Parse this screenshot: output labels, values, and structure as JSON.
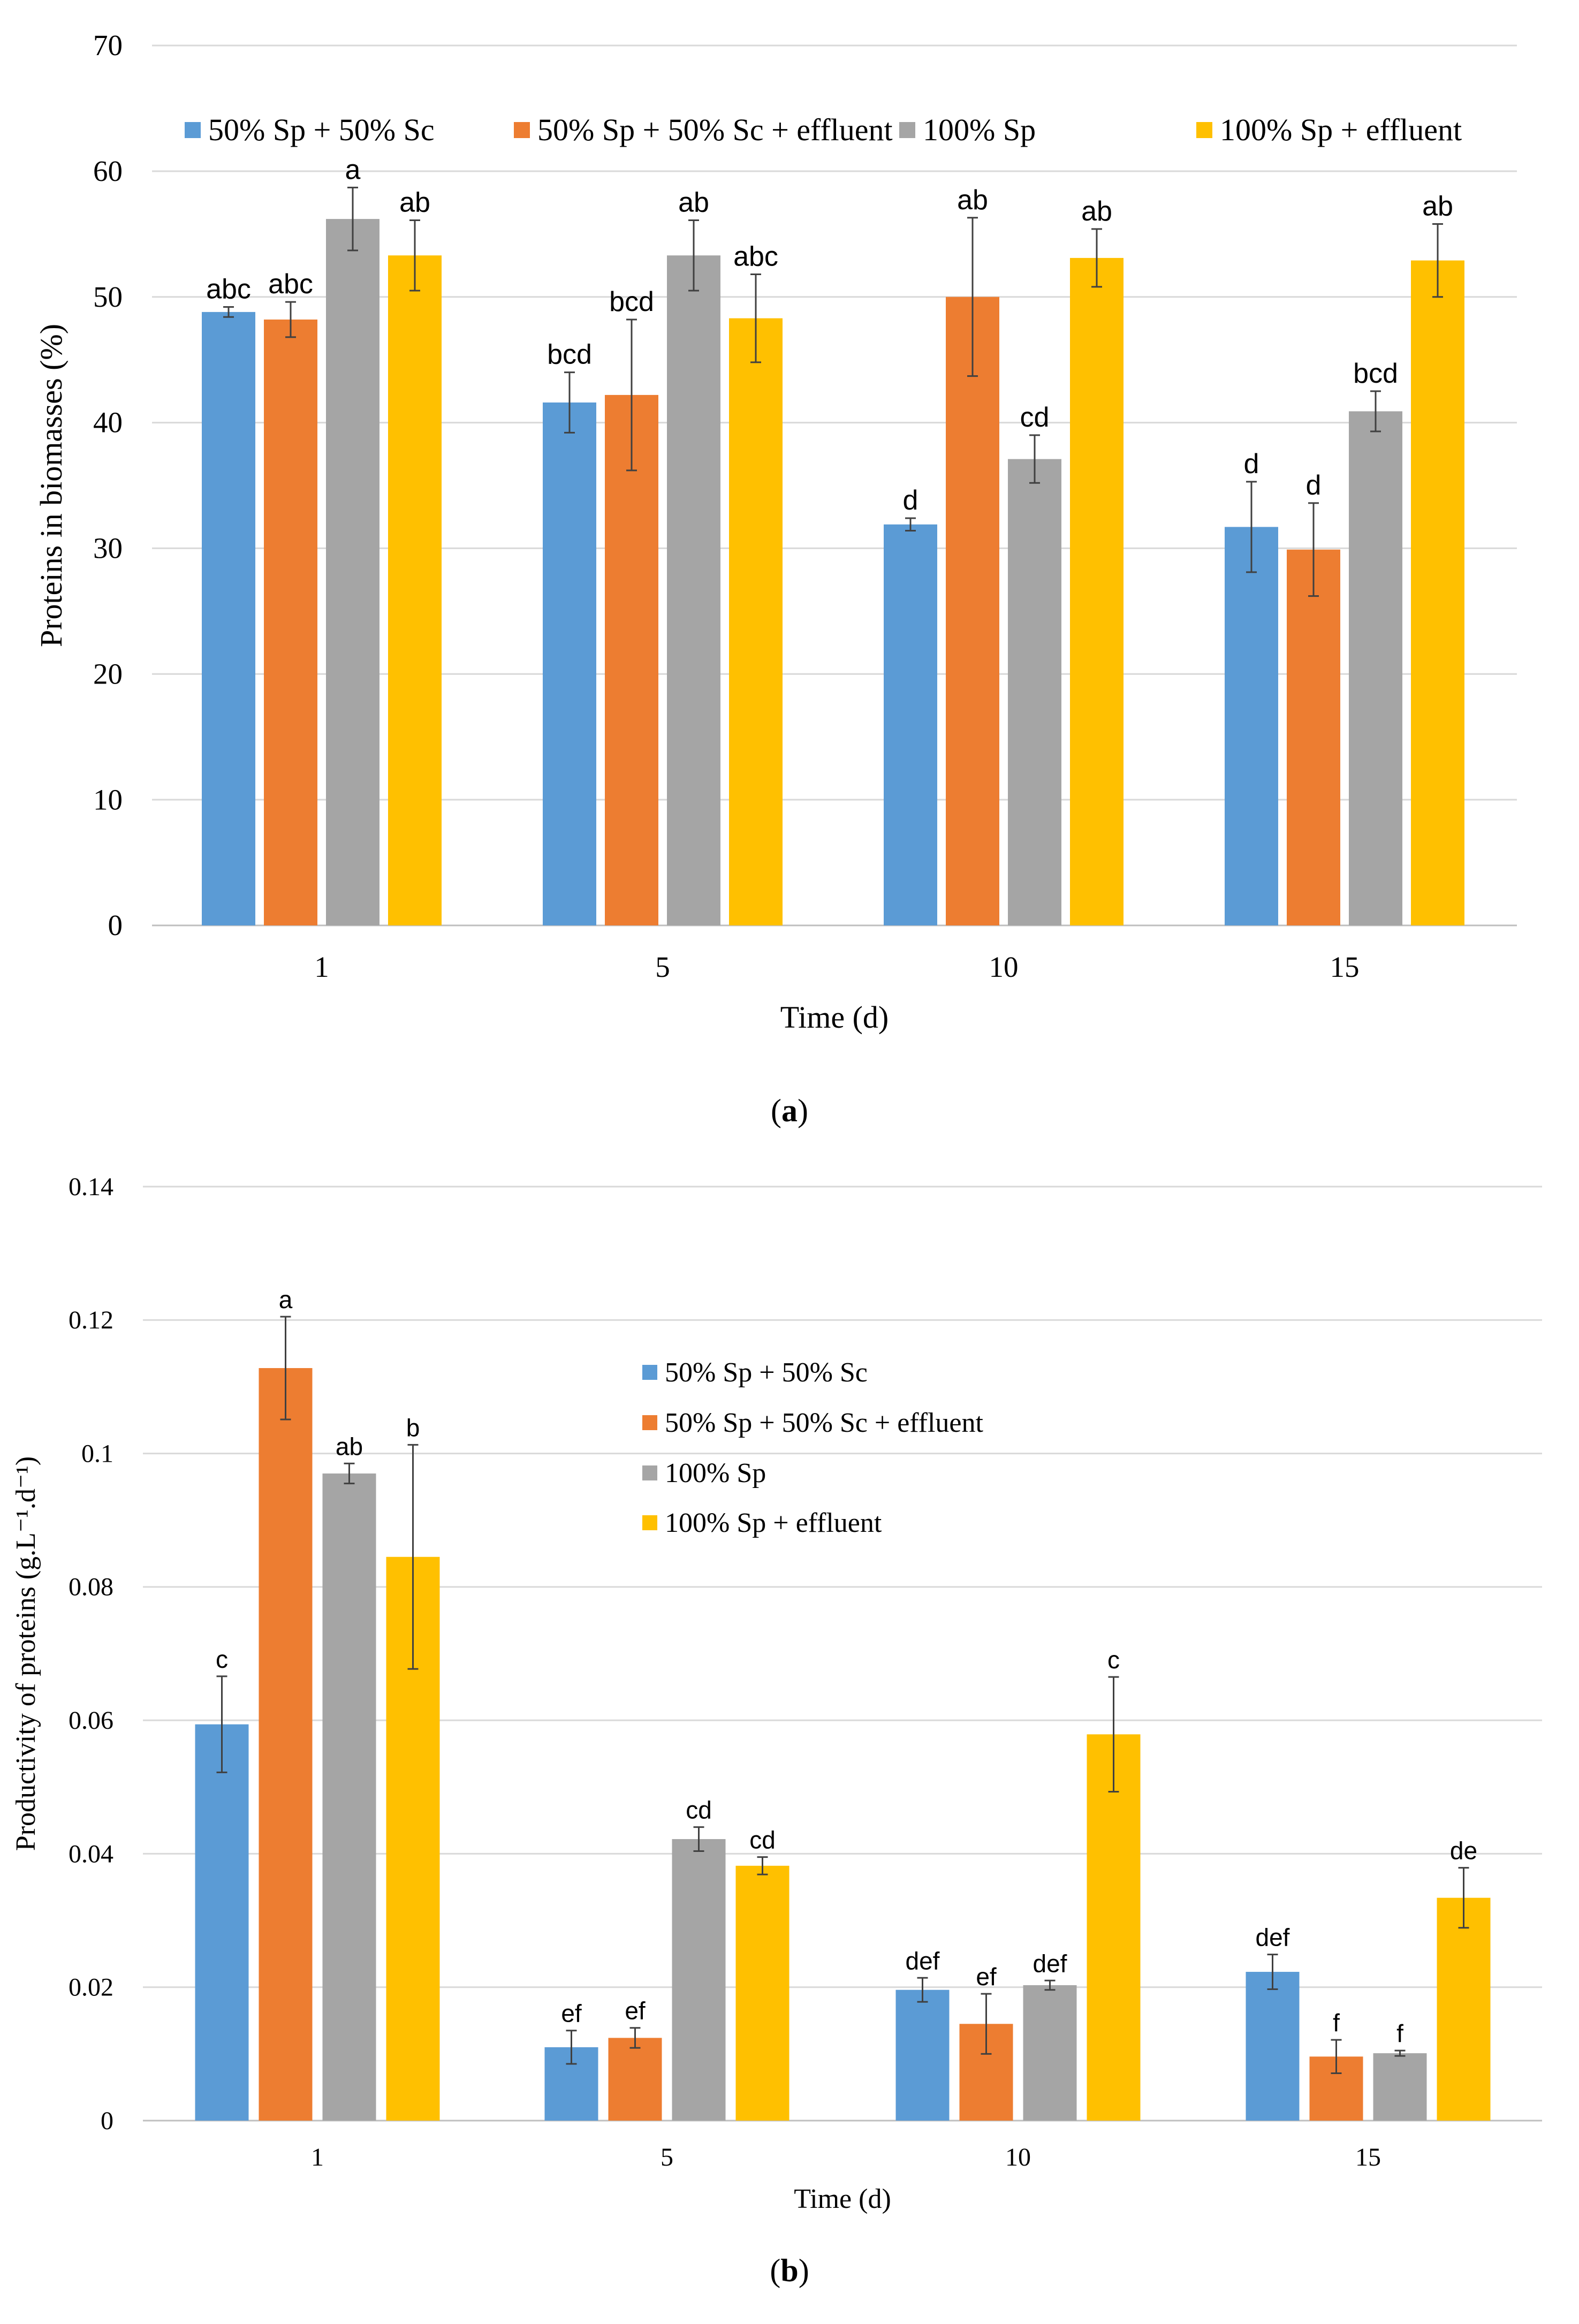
{
  "series_names": [
    "50% Sp + 50% Sc",
    "50% Sp + 50% Sc + effluent",
    "100% Sp",
    "100% Sp + effluent"
  ],
  "colors": [
    "#5B9BD5",
    "#ED7D31",
    "#A5A5A5",
    "#FFC000"
  ],
  "chart_data": [
    {
      "type": "bar",
      "caption": "a",
      "xlabel": "Time (d)",
      "ylabel": "Proteins in biomasses  (%)",
      "ylim": [
        0,
        70
      ],
      "yticks": [
        "0",
        "10",
        "20",
        "30",
        "40",
        "50",
        "60",
        "70"
      ],
      "categories": [
        "1",
        "5",
        "10",
        "15"
      ],
      "grid": true,
      "legend": "top",
      "series": [
        {
          "name": "50% Sp + 50% Sc",
          "values": [
            48.8,
            41.6,
            31.9,
            31.7
          ],
          "errors": [
            0.4,
            2.4,
            0.5,
            3.6
          ],
          "letters": [
            "abc",
            "bcd",
            "d",
            "d"
          ]
        },
        {
          "name": "50% Sp + 50% Sc + effluent",
          "values": [
            48.2,
            42.2,
            50.0,
            29.9
          ],
          "errors": [
            1.4,
            6.0,
            6.3,
            3.7
          ],
          "letters": [
            "abc",
            "bcd",
            "ab",
            "d"
          ]
        },
        {
          "name": "100% Sp",
          "values": [
            56.2,
            53.3,
            37.1,
            40.9
          ],
          "errors": [
            2.5,
            2.8,
            1.9,
            1.6
          ],
          "letters": [
            "a",
            "ab",
            "cd",
            "bcd"
          ]
        },
        {
          "name": "100% Sp + effluent",
          "values": [
            53.3,
            48.3,
            53.1,
            52.9
          ],
          "errors": [
            2.8,
            3.5,
            2.3,
            2.9
          ],
          "letters": [
            "ab",
            "abc",
            "ab",
            "ab"
          ]
        }
      ]
    },
    {
      "type": "bar",
      "caption": "b",
      "xlabel": "Time (d)",
      "ylabel": "Productivity of proteins (g.L⁻¹.d⁻¹)",
      "ylim": [
        0,
        0.14
      ],
      "yticks": [
        "0",
        "0.02",
        "0.04",
        "0.06",
        "0.08",
        "0.1",
        "0.12",
        "0.14"
      ],
      "categories": [
        "1",
        "5",
        "10",
        "15"
      ],
      "grid": true,
      "legend": "upper-middle",
      "series": [
        {
          "name": "50% Sp + 50% Sc",
          "values": [
            0.0594,
            0.011,
            0.0196,
            0.0223
          ],
          "errors": [
            0.0072,
            0.0025,
            0.0018,
            0.0026
          ],
          "letters": [
            "c",
            "ef",
            "def",
            "def"
          ]
        },
        {
          "name": "50% Sp + 50% Sc + effluent",
          "values": [
            0.1128,
            0.0124,
            0.0145,
            0.0096
          ],
          "errors": [
            0.0077,
            0.0015,
            0.0045,
            0.0025
          ],
          "letters": [
            "a",
            "ef",
            "ef",
            "f"
          ]
        },
        {
          "name": "100% Sp",
          "values": [
            0.097,
            0.0422,
            0.0203,
            0.0101
          ],
          "errors": [
            0.0015,
            0.0018,
            0.0007,
            0.0004
          ],
          "letters": [
            "ab",
            "cd",
            "def",
            "f"
          ]
        },
        {
          "name": "100% Sp + effluent",
          "values": [
            0.0845,
            0.0382,
            0.0579,
            0.0334
          ],
          "errors": [
            0.0168,
            0.0013,
            0.0086,
            0.0045
          ],
          "letters": [
            "b",
            "cd",
            "c",
            "de"
          ]
        }
      ]
    }
  ]
}
